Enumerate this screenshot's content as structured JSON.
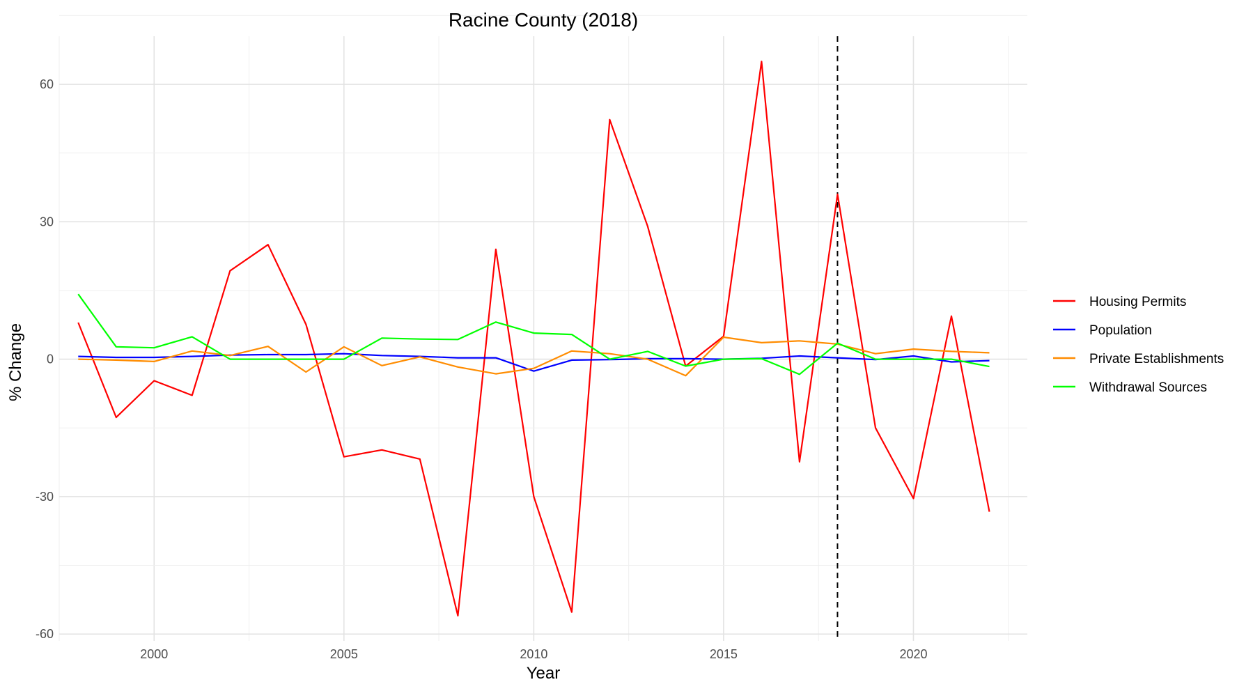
{
  "chart_data": {
    "type": "line",
    "title": "Racine County (2018)",
    "xlabel": "Year",
    "ylabel": "% Change",
    "xlim": [
      1997.5,
      2023.0
    ],
    "ylim": [
      -61.5,
      70.5
    ],
    "x_ticks": [
      2000,
      2005,
      2010,
      2015,
      2020
    ],
    "y_ticks": [
      -60,
      -30,
      0,
      30,
      60
    ],
    "grid": true,
    "legend_position": "right",
    "reference_line": {
      "x": 2018,
      "style": "dashed"
    },
    "x": [
      1998,
      1999,
      2000,
      2001,
      2002,
      2003,
      2004,
      2005,
      2006,
      2007,
      2008,
      2009,
      2010,
      2011,
      2012,
      2013,
      2014,
      2015,
      2016,
      2017,
      2018,
      2019,
      2020,
      2021,
      2022
    ],
    "series": [
      {
        "name": "Housing Permits",
        "color": "#ff0000",
        "values": [
          8.0,
          -12.7,
          -4.7,
          -7.9,
          19.3,
          25.0,
          7.6,
          -21.3,
          -19.8,
          -21.8,
          -56.0,
          24.0,
          -30.0,
          -55.2,
          52.3,
          29.0,
          -1.5,
          5.0,
          65.0,
          -22.4,
          36.0,
          -15.0,
          -30.4,
          9.4,
          -33.3
        ]
      },
      {
        "name": "Population",
        "color": "#0000ff",
        "values": [
          0.6,
          0.4,
          0.4,
          0.6,
          0.9,
          1.0,
          1.0,
          1.2,
          0.8,
          0.6,
          0.3,
          0.3,
          -2.6,
          -0.2,
          -0.1,
          0.1,
          0.1,
          0.0,
          0.2,
          0.7,
          0.3,
          -0.1,
          0.7,
          -0.6,
          -0.3
        ]
      },
      {
        "name": "Private Establishments",
        "color": "#ff8c00",
        "values": [
          0.0,
          -0.2,
          -0.5,
          1.8,
          0.8,
          2.8,
          -2.8,
          2.7,
          -1.4,
          0.5,
          -1.7,
          -3.2,
          -2.0,
          1.8,
          1.2,
          0.0,
          -3.6,
          4.8,
          3.6,
          4.0,
          3.3,
          1.2,
          2.2,
          1.7,
          1.4
        ]
      },
      {
        "name": "Withdrawal Sources",
        "color": "#00ff00",
        "values": [
          14.2,
          2.7,
          2.5,
          4.9,
          0.0,
          0.0,
          0.0,
          0.0,
          4.6,
          4.4,
          4.3,
          8.1,
          5.7,
          5.4,
          0.0,
          1.7,
          -1.5,
          0.0,
          0.1,
          -3.3,
          3.5,
          0.0,
          0.0,
          0.0,
          -1.6
        ]
      }
    ]
  }
}
